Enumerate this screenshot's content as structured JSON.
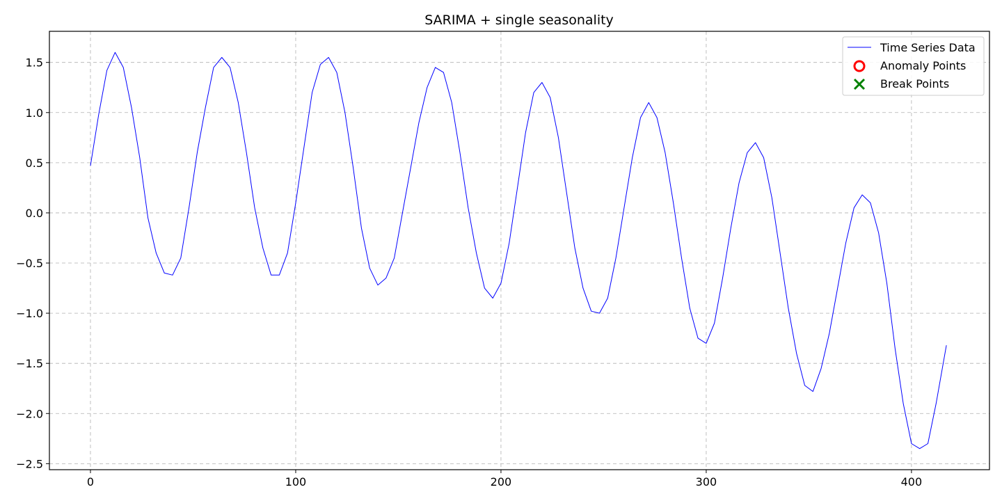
{
  "chart_data": {
    "type": "line",
    "title": "SARIMA + single seasonality",
    "xlabel": "",
    "ylabel": "",
    "xlim": [
      -20,
      438
    ],
    "ylim": [
      -2.56,
      1.81
    ],
    "xticks": [
      0,
      100,
      200,
      300,
      400
    ],
    "yticks": [
      -2.5,
      -2.0,
      -1.5,
      -1.0,
      -0.5,
      0.0,
      0.5,
      1.0,
      1.5
    ],
    "ytick_labels": [
      "−2.5",
      "−2.0",
      "−1.5",
      "−1.0",
      "−0.5",
      "0.0",
      "0.5",
      "1.0",
      "1.5"
    ],
    "xtick_labels": [
      "0",
      "100",
      "200",
      "300",
      "400"
    ],
    "grid": true,
    "legend_position": "top-right",
    "legend": [
      {
        "label": "Time Series Data",
        "marker": "line",
        "color": "#0000ff"
      },
      {
        "label": "Anomaly Points",
        "marker": "circle",
        "color": "#ff0000"
      },
      {
        "label": "Break Points",
        "marker": "x",
        "color": "#008000"
      }
    ],
    "series": [
      {
        "name": "Time Series Data",
        "color": "#0000ff",
        "x": [
          0,
          4,
          8,
          12,
          16,
          20,
          24,
          28,
          32,
          36,
          40,
          44,
          48,
          52,
          56,
          60,
          64,
          68,
          72,
          76,
          80,
          84,
          88,
          92,
          96,
          100,
          104,
          108,
          112,
          116,
          120,
          124,
          128,
          132,
          136,
          140,
          144,
          148,
          152,
          156,
          160,
          164,
          168,
          172,
          176,
          180,
          184,
          188,
          192,
          196,
          200,
          204,
          208,
          212,
          216,
          220,
          224,
          228,
          232,
          236,
          240,
          244,
          248,
          252,
          256,
          260,
          264,
          268,
          272,
          276,
          280,
          284,
          288,
          292,
          296,
          300,
          304,
          308,
          312,
          316,
          320,
          324,
          328,
          332,
          336,
          340,
          344,
          348,
          352,
          356,
          360,
          364,
          368,
          372,
          376,
          380,
          384,
          388,
          392,
          396,
          400,
          404,
          408,
          412,
          417
        ],
        "values": [
          0.47,
          0.98,
          1.42,
          1.6,
          1.45,
          1.05,
          0.55,
          -0.05,
          -0.4,
          -0.6,
          -0.62,
          -0.45,
          0.05,
          0.6,
          1.05,
          1.45,
          1.55,
          1.45,
          1.1,
          0.6,
          0.05,
          -0.35,
          -0.62,
          -0.62,
          -0.4,
          0.1,
          0.65,
          1.2,
          1.48,
          1.55,
          1.4,
          1.0,
          0.45,
          -0.15,
          -0.55,
          -0.72,
          -0.65,
          -0.45,
          0.0,
          0.45,
          0.9,
          1.25,
          1.45,
          1.4,
          1.1,
          0.6,
          0.05,
          -0.4,
          -0.75,
          -0.85,
          -0.7,
          -0.3,
          0.25,
          0.8,
          1.2,
          1.3,
          1.15,
          0.75,
          0.2,
          -0.35,
          -0.75,
          -0.98,
          -1.0,
          -0.85,
          -0.45,
          0.05,
          0.55,
          0.95,
          1.1,
          0.95,
          0.6,
          0.1,
          -0.45,
          -0.95,
          -1.25,
          -1.3,
          -1.1,
          -0.65,
          -0.15,
          0.3,
          0.6,
          0.7,
          0.55,
          0.15,
          -0.4,
          -0.95,
          -1.4,
          -1.72,
          -1.78,
          -1.55,
          -1.2,
          -0.75,
          -0.3,
          0.05,
          0.18,
          0.1,
          -0.2,
          -0.7,
          -1.35,
          -1.9,
          -2.3,
          -2.35,
          -2.3,
          -1.9,
          -1.32
        ]
      }
    ]
  }
}
